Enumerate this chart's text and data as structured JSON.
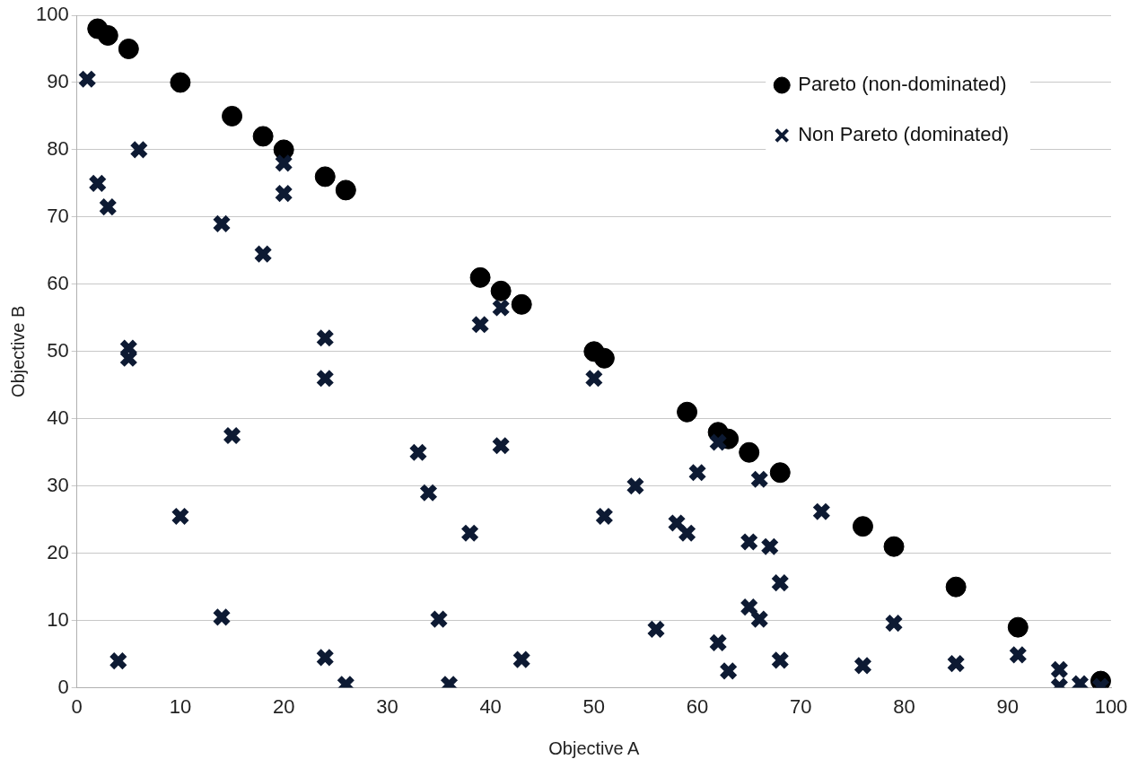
{
  "chart_data": {
    "type": "scatter",
    "xlabel": "Objective A",
    "ylabel": "Objective B",
    "xlim": [
      0,
      100
    ],
    "xticks": [
      0,
      10,
      20,
      30,
      40,
      50,
      60,
      70,
      80,
      90,
      100
    ],
    "ylim": [
      0,
      100
    ],
    "yticks": [
      0,
      10,
      20,
      30,
      40,
      50,
      60,
      70,
      80,
      90,
      100
    ],
    "grid": "y",
    "legend": "top right",
    "series": [
      {
        "name": "Pareto (non-dominated)",
        "color": "#000000",
        "marker": "circle",
        "x": [
          2,
          3,
          5,
          10,
          15,
          18,
          20,
          24,
          26,
          39,
          41,
          43,
          50,
          51,
          59,
          62,
          63,
          65,
          68,
          76,
          79,
          85,
          91,
          99
        ],
        "values": [
          98,
          97,
          95,
          90,
          85,
          82,
          80,
          76,
          74,
          61,
          59,
          57,
          50,
          49,
          41,
          38,
          37,
          35,
          32,
          24,
          21,
          15,
          9,
          1
        ]
      },
      {
        "name": "Non Pareto (dominated)",
        "color": "#0d1a33",
        "marker": "cross",
        "x": [
          1,
          2,
          3,
          6,
          5,
          5,
          4,
          10,
          14,
          14,
          15,
          18,
          20,
          20,
          24,
          24,
          24,
          26,
          33,
          34,
          38,
          35,
          36,
          39,
          41,
          41,
          43,
          50,
          51,
          54,
          56,
          58,
          59,
          60,
          62,
          62,
          63,
          65,
          65,
          66,
          66,
          67,
          68,
          68,
          72,
          76,
          79,
          85,
          91,
          95,
          95,
          97,
          99
        ],
        "values": [
          90.5,
          75,
          71.5,
          80,
          50.5,
          49,
          4,
          25.5,
          69,
          10.5,
          37.5,
          64.5,
          78,
          73.5,
          52,
          46,
          4.5,
          0.5,
          35,
          29,
          23,
          10.2,
          0.5,
          54,
          56.5,
          36,
          4.2,
          46,
          25.5,
          30,
          8.7,
          24.5,
          23,
          32,
          36.5,
          6.7,
          2.5,
          21.7,
          12,
          10.2,
          31,
          21,
          15.6,
          4.1,
          26.2,
          3.3,
          9.6,
          3.6,
          4.9,
          2.7,
          0.2,
          0.6,
          0.2
        ]
      }
    ]
  }
}
